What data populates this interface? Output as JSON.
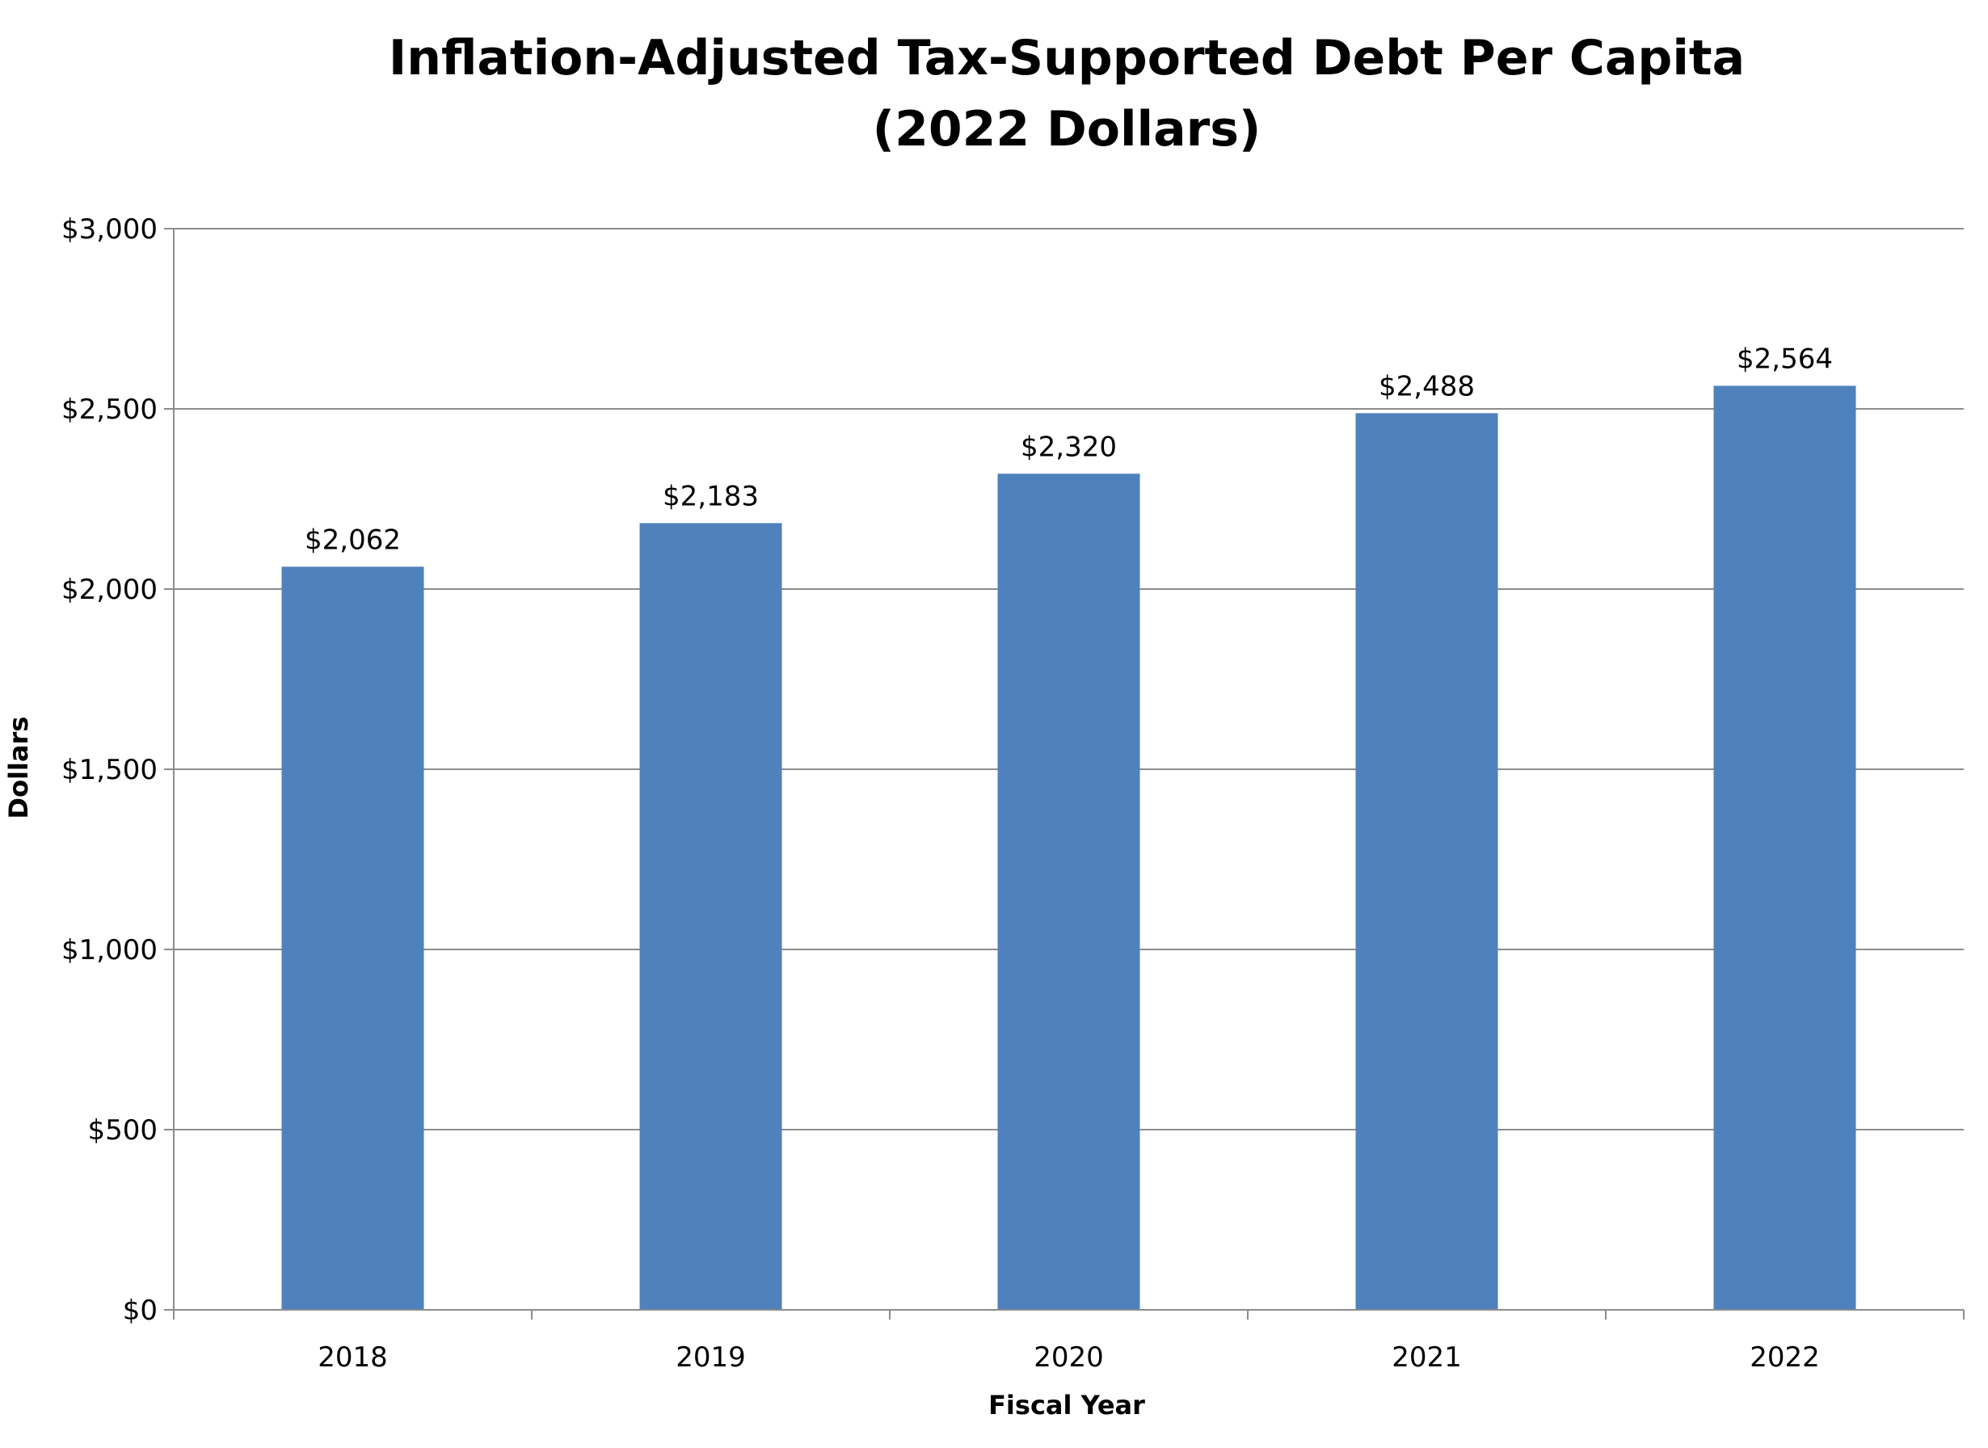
{
  "chart_data": {
    "type": "bar",
    "title_lines": [
      "Inflation-Adjusted Tax-Supported Debt Per Capita",
      "(2022 Dollars)"
    ],
    "xlabel": "Fiscal Year",
    "ylabel": "Dollars",
    "categories": [
      "2018",
      "2019",
      "2020",
      "2021",
      "2022"
    ],
    "values": [
      2062,
      2183,
      2320,
      2488,
      2564
    ],
    "data_labels": [
      "$2,062",
      "$2,183",
      "$2,320",
      "$2,488",
      "$2,564"
    ],
    "ylim": [
      0,
      3000
    ],
    "yticks": [
      0,
      500,
      1000,
      1500,
      2000,
      2500,
      3000
    ],
    "ytick_labels": [
      "$0",
      "$500",
      "$1,000",
      "$1,500",
      "$2,000",
      "$2,500",
      "$3,000"
    ],
    "grid": true,
    "legend": "none",
    "bar_color": "#4F81BD",
    "grid_color": "#8C8C8C"
  }
}
